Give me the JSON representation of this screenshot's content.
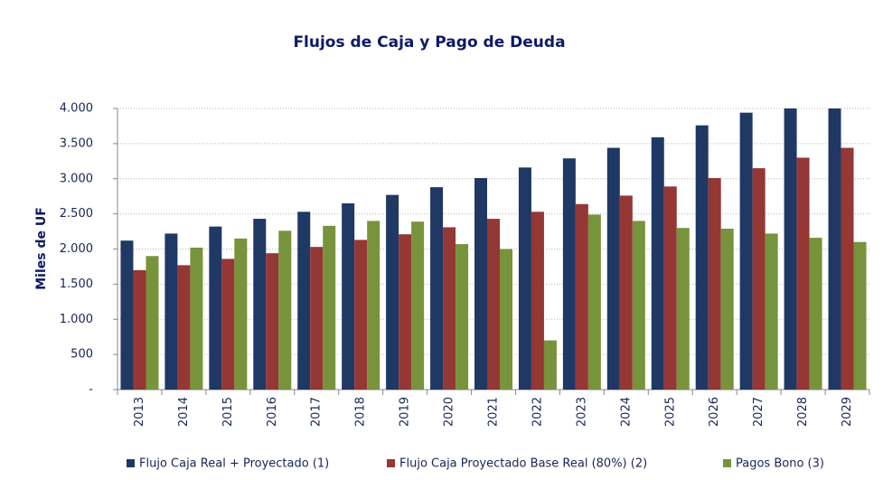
{
  "chart_data": {
    "type": "bar",
    "title": "Flujos de Caja y Pago de Deuda",
    "y_label": "Miles de UF",
    "categories": [
      "2013",
      "2014",
      "2015",
      "2016",
      "2017",
      "2018",
      "2019",
      "2020",
      "2021",
      "2022",
      "2023",
      "2024",
      "2025",
      "2026",
      "2027",
      "2028",
      "2029"
    ],
    "series": [
      {
        "name": "Flujo Caja Real + Proyectado (1)",
        "color": "#1f3864",
        "values": [
          2120,
          2220,
          2320,
          2430,
          2530,
          2650,
          2770,
          2880,
          3010,
          3160,
          3290,
          3440,
          3590,
          3760,
          3940,
          4000,
          4000
        ]
      },
      {
        "name": "Flujo Caja Proyectado Base Real (80%) (2)",
        "color": "#953735",
        "values": [
          1700,
          1770,
          1860,
          1940,
          2030,
          2130,
          2210,
          2310,
          2430,
          2530,
          2640,
          2760,
          2890,
          3010,
          3150,
          3300,
          3440
        ]
      },
      {
        "name": "Pagos Bono (3)",
        "color": "#77933c",
        "values": [
          1900,
          2020,
          2150,
          2260,
          2330,
          2400,
          2390,
          2070,
          2000,
          700,
          2490,
          2400,
          2300,
          2290,
          2220,
          2160,
          2100
        ]
      }
    ],
    "ylim": [
      0,
      4000
    ],
    "yticks": [
      {
        "value": 0,
        "label": "-"
      },
      500,
      {
        "value": 1000,
        "label": "1.000"
      },
      {
        "value": 1500,
        "label": "1.500"
      },
      {
        "value": 2000,
        "label": "2.000"
      },
      {
        "value": 2500,
        "label": "2.500"
      },
      {
        "value": 3000,
        "label": "3.000"
      },
      {
        "value": 3500,
        "label": "3.500"
      },
      {
        "value": 4000,
        "label": "4.000"
      }
    ],
    "grid": true,
    "legend": "bottom"
  }
}
